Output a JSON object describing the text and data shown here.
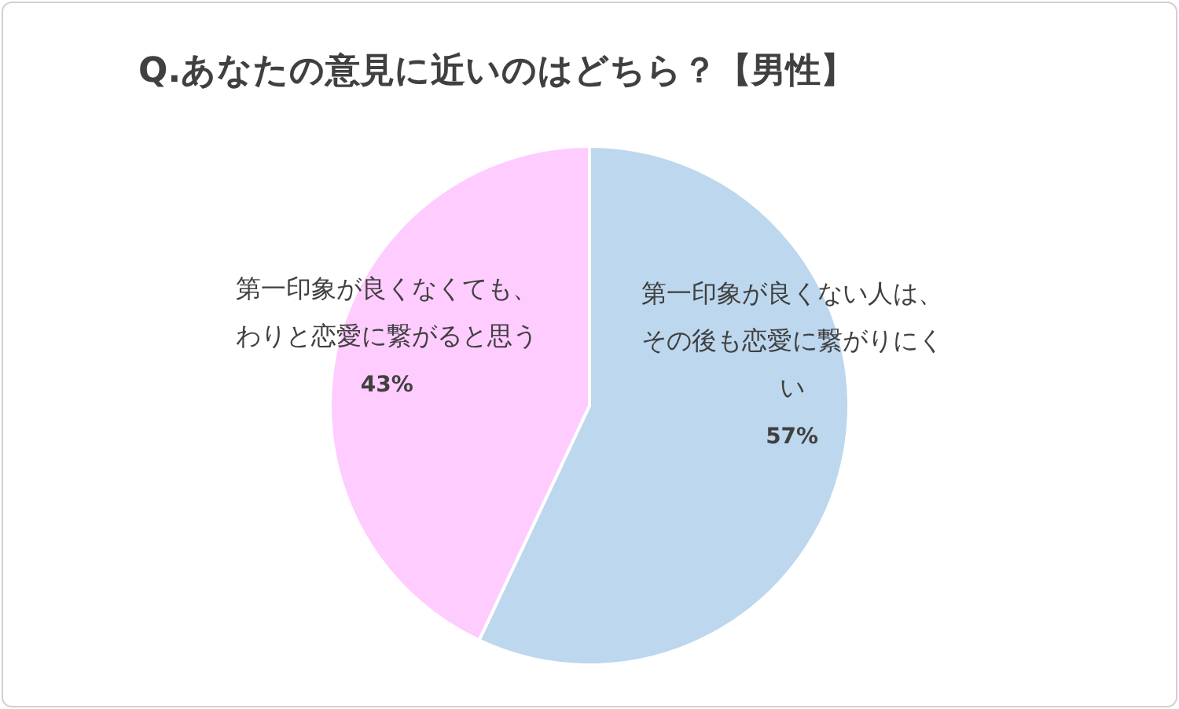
{
  "chart_data": {
    "type": "pie",
    "title": "Q.あなたの意見に近いのはどちら？【男性】",
    "categories": [
      "第一印象が良くない人は、その後も恋愛に繋がりにくい",
      "第一印象が良くなくても、わりと恋愛に繋がると思う"
    ],
    "values": [
      57,
      43
    ],
    "colors": [
      "#bdd7ee",
      "#ffccff"
    ],
    "value_labels": [
      "57%",
      "43%"
    ]
  }
}
